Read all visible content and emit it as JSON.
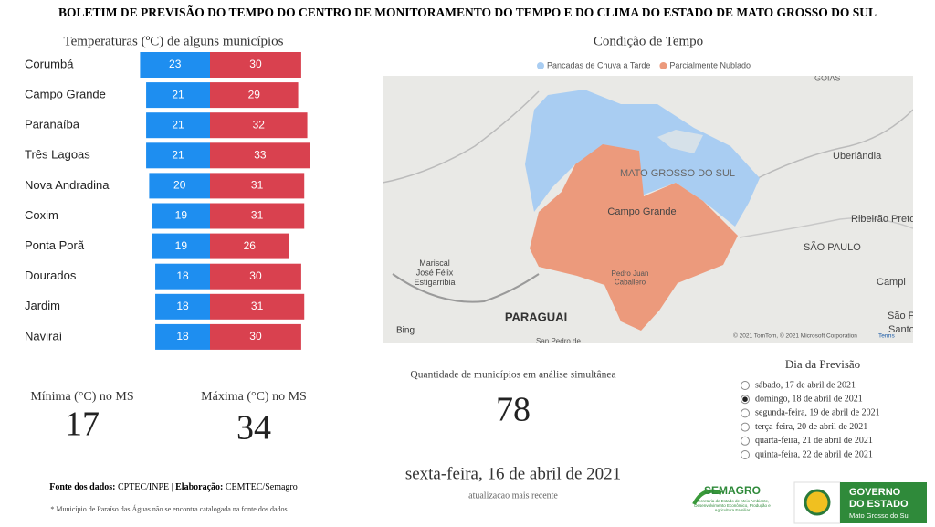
{
  "header": {
    "title": "BOLETIM DE PREVISÃO DO TEMPO DO CENTRO DE MONITORAMENTO DO TEMPO E DO CLIMA DO ESTADO DE MATO GROSSO DO SUL"
  },
  "chart_data": {
    "type": "bar",
    "title": "Temperaturas (ºC) de alguns municípios",
    "categories": [
      "Corumbá",
      "Campo Grande",
      "Paranaíba",
      "Três Lagoas",
      "Nova Andradina",
      "Coxim",
      "Ponta Porã",
      "Dourados",
      "Jardim",
      "Naviraí"
    ],
    "series": [
      {
        "color": "#1e8ef0",
        "values": [
          23,
          21,
          21,
          21,
          20,
          19,
          19,
          18,
          18,
          18
        ]
      },
      {
        "color": "#d9414f",
        "values": [
          30,
          29,
          32,
          33,
          31,
          31,
          26,
          30,
          31,
          30
        ]
      }
    ]
  },
  "stats": {
    "min_label": "Mínima (°C) no MS",
    "min_value": 17,
    "max_label": "Máxima (°C) no MS",
    "max_value": 34,
    "count_label": "Quantidade de municípios em análise simultânea",
    "count_value": 78,
    "date": "sexta-feira, 16 de abril de 2021",
    "date_note": "atualizacao mais recente"
  },
  "map": {
    "title": "Condição de Tempo",
    "legend": [
      {
        "label": "Pancadas de Chuva a Tarde",
        "color": "#a9cdf2"
      },
      {
        "label": "Parcialmente Nublado",
        "color": "#ec9a7c"
      }
    ],
    "places": [
      "GOIÁS",
      "MATO GROSSO DO SUL",
      "Uberlândia",
      "Campo Grande",
      "Ribeirão Preto",
      "SÃO PAULO",
      "Campi",
      "Mariscal José Félix Estigarribia",
      "PARAGUAI",
      "Pedro Juan Caballero",
      "São Pa",
      "Santo",
      "San Pedro de"
    ],
    "provider": "Bing",
    "attribution": "© 2021 TomTom, © 2021 Microsoft Corporation",
    "terms": "Terms"
  },
  "forecast": {
    "title": "Dia da Previsão",
    "selected": 1,
    "options": [
      "sábado, 17 de abril de 2021",
      "domingo, 18 de abril de 2021",
      "segunda-feira, 19 de abril de 2021",
      "terça-feira, 20 de abril de 2021",
      "quarta-feira, 21 de abril de 2021",
      "quinta-feira, 22 de abril de 2021"
    ]
  },
  "footer": {
    "source_label": "Fonte dos dados:",
    "source": "CPTEC/INPE",
    "sep": "|",
    "made_label": "Elaboração:",
    "made": "CEMTEC/Semagro",
    "note": "* Município de Paraíso das Águas não se encontra catalogada na fonte dos dados"
  },
  "logos": {
    "semagro": "SEMAGRO",
    "semagro_sub": "Secretaria de Estado de Meio Ambiente, Desenvolvimento Econômico, Produção e Agricultura Familiar",
    "gov1": "GOVERNO",
    "gov2": "DO ESTADO",
    "gov3": "Mato Grosso do Sul"
  }
}
